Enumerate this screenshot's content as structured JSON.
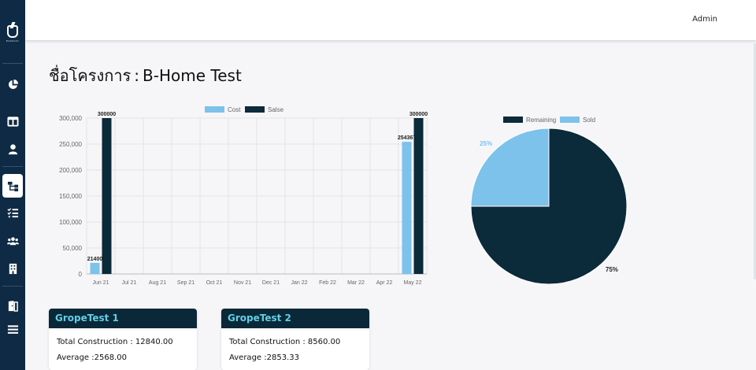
{
  "app": {
    "logo_text": "BANGSAY",
    "user": "Admin"
  },
  "sidebar": {
    "items": [
      {
        "name": "dashboard-chart-icon"
      },
      {
        "name": "layout-icon"
      },
      {
        "name": "user-icon"
      },
      {
        "name": "project-structure-icon",
        "active": true
      },
      {
        "name": "task-list-icon"
      },
      {
        "name": "users-group-icon"
      },
      {
        "name": "building-icon"
      },
      {
        "name": "door-icon"
      },
      {
        "name": "menu-icon"
      }
    ]
  },
  "page": {
    "label": "ชื่อโครงการ",
    "separator": ":",
    "project": "B-Home Test"
  },
  "chart_data": [
    {
      "type": "bar",
      "categories": [
        "Jun 21",
        "Jul 21",
        "Aug 21",
        "Sep 21",
        "Oct 21",
        "Nov 21",
        "Dec 21",
        "Jan 22",
        "Feb 22",
        "Mar 22",
        "Apr 22",
        "May 22"
      ],
      "series": [
        {
          "name": "Cost",
          "color": "#7dc2ea",
          "values": [
            21400,
            0,
            0,
            0,
            0,
            0,
            0,
            0,
            0,
            0,
            0,
            254367
          ]
        },
        {
          "name": "Salse",
          "color": "#0b2a3a",
          "values": [
            300000,
            0,
            0,
            0,
            0,
            0,
            0,
            0,
            0,
            0,
            0,
            300000
          ]
        }
      ],
      "data_labels": [
        "21400",
        "300000",
        "254367",
        "300000"
      ],
      "ylim": [
        0,
        300000
      ],
      "yticks": [
        "300,000",
        "250,000",
        "200,000",
        "150,000",
        "100,000",
        "50,000",
        "0"
      ],
      "legend": "top",
      "grid": true
    },
    {
      "type": "pie",
      "slices": [
        {
          "name": "Remaining",
          "value": 75,
          "label": "75%",
          "color": "#0b2a3a"
        },
        {
          "name": "Sold",
          "value": 25,
          "label": "25%",
          "color": "#7dc2ea"
        }
      ],
      "legend": "top"
    }
  ],
  "cards": [
    {
      "title": "GropeTest 1",
      "construction": "Total Construction : 12840.00",
      "average": "Average :2568.00"
    },
    {
      "title": "GropeTest 2",
      "construction": "Total Construction : 8560.00",
      "average": "Average :2853.33"
    }
  ]
}
